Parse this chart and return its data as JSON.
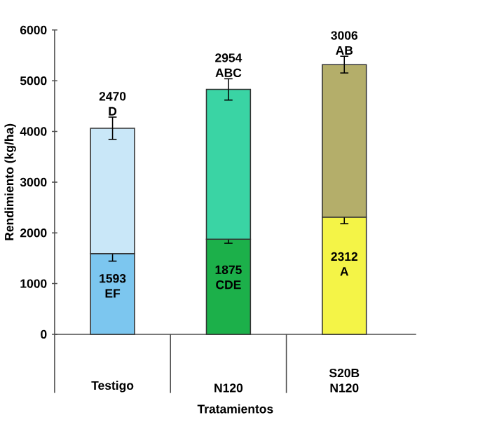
{
  "chart_data": {
    "type": "bar",
    "stacked": true,
    "xlabel": "Tratamientos",
    "ylabel": "Rendimiento (kg/ha)",
    "categories": [
      "Testigo",
      "N120",
      "S20B N120"
    ],
    "ylim": [
      0,
      6000
    ],
    "yticks": [
      0,
      1000,
      2000,
      3000,
      4000,
      5000,
      6000
    ],
    "series": [
      {
        "colors": [
          "#7cc6ef",
          "#1cb04a",
          "#f4f447"
        ],
        "values": [
          1593,
          1875,
          2312
        ],
        "errors": [
          150,
          80,
          130
        ],
        "value_labels": [
          "1593 EF",
          "1875 CDE",
          "2312 A"
        ]
      },
      {
        "colors": [
          "#c9e7f8",
          "#3ad4a4",
          "#b4ae6a"
        ],
        "values": [
          2470,
          2954,
          3006
        ],
        "errors": [
          220,
          210,
          165
        ],
        "value_labels": [
          "2470 D",
          "2954 ABC",
          "3006 AB"
        ]
      }
    ]
  }
}
